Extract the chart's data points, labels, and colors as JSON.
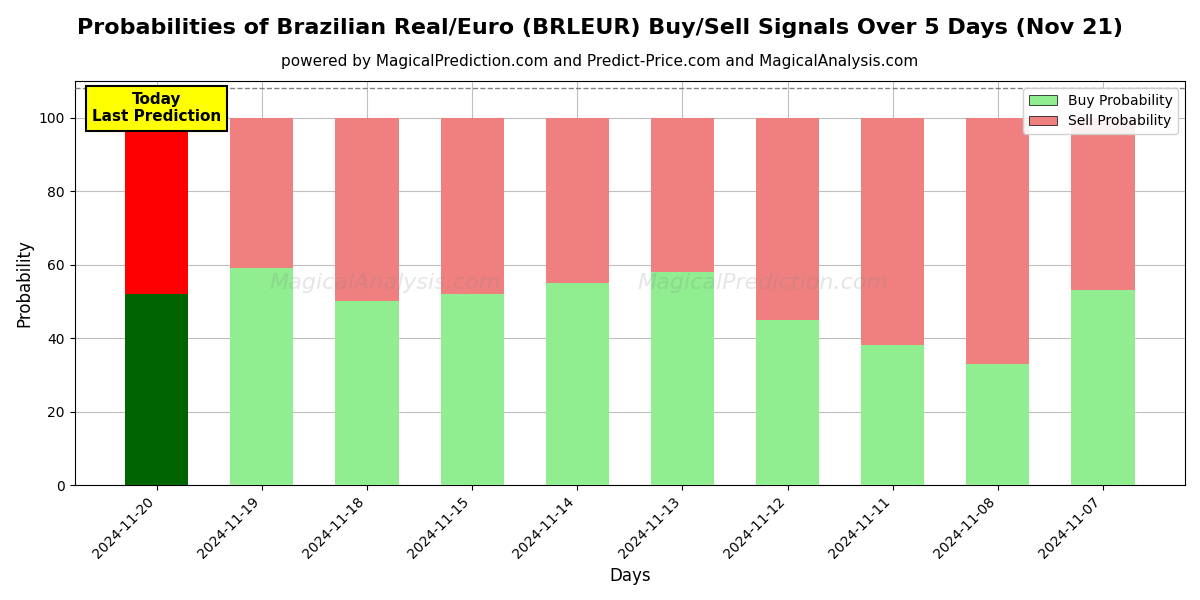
{
  "title": "Probabilities of Brazilian Real/Euro (BRLEUR) Buy/Sell Signals Over 5 Days (Nov 21)",
  "subtitle": "powered by MagicalPrediction.com and Predict-Price.com and MagicalAnalysis.com",
  "xlabel": "Days",
  "ylabel": "Probability",
  "dates": [
    "2024-11-20",
    "2024-11-19",
    "2024-11-18",
    "2024-11-15",
    "2024-11-14",
    "2024-11-13",
    "2024-11-12",
    "2024-11-11",
    "2024-11-08",
    "2024-11-07"
  ],
  "buy_probs": [
    52,
    59,
    50,
    52,
    55,
    58,
    45,
    38,
    33,
    53
  ],
  "sell_probs": [
    48,
    41,
    50,
    48,
    45,
    42,
    55,
    62,
    67,
    47
  ],
  "today_buy_color": "#006400",
  "today_sell_color": "#FF0000",
  "buy_color": "#90EE90",
  "sell_color": "#F08080",
  "today_label_bg": "#FFFF00",
  "today_label_text": "Today\nLast Prediction",
  "legend_buy": "Buy Probability",
  "legend_sell": "Sell Probability",
  "ylim": [
    0,
    110
  ],
  "dashed_line_y": 108,
  "bar_width": 0.6,
  "title_fontsize": 16,
  "subtitle_fontsize": 11,
  "label_fontsize": 12
}
